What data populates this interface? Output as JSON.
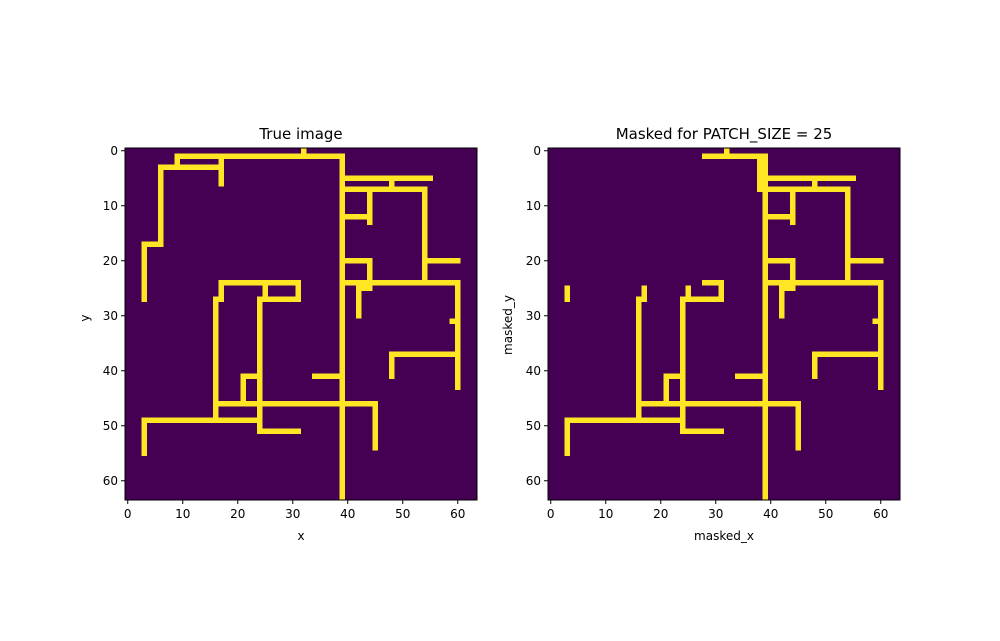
{
  "colors": {
    "background": "#440154",
    "foreground": "#fde725",
    "axis": "#000000"
  },
  "chart_data": [
    {
      "type": "heatmap",
      "title": "True image",
      "xlabel": "x",
      "ylabel": "y",
      "xlim": [
        -0.5,
        63.5
      ],
      "ylim": [
        63.5,
        -0.5
      ],
      "xticks": [
        0,
        10,
        20,
        30,
        40,
        50,
        60
      ],
      "yticks": [
        0,
        10,
        20,
        30,
        40,
        50,
        60
      ],
      "image_size": [
        64,
        64
      ],
      "colormap": "viridis",
      "segments": [
        [
          [
            10,
            1
          ],
          [
            39,
            1
          ]
        ],
        [
          [
            9,
            1
          ],
          [
            9,
            3
          ]
        ],
        [
          [
            6,
            3
          ],
          [
            17,
            3
          ]
        ],
        [
          [
            17,
            1
          ],
          [
            17,
            6
          ]
        ],
        [
          [
            6,
            3
          ],
          [
            6,
            17
          ]
        ],
        [
          [
            3,
            17
          ],
          [
            6,
            17
          ]
        ],
        [
          [
            3,
            17
          ],
          [
            3,
            27
          ]
        ],
        [
          [
            32,
            0
          ],
          [
            32,
            1
          ]
        ],
        [
          [
            39,
            1
          ],
          [
            39,
            7
          ]
        ],
        [
          [
            39,
            1
          ],
          [
            39,
            63
          ]
        ],
        [
          [
            39,
            5
          ],
          [
            55,
            5
          ]
        ],
        [
          [
            48,
            5
          ],
          [
            48,
            7
          ]
        ],
        [
          [
            39,
            7
          ],
          [
            54,
            7
          ]
        ],
        [
          [
            54,
            7
          ],
          [
            54,
            24
          ]
        ],
        [
          [
            44,
            7
          ],
          [
            44,
            13
          ]
        ],
        [
          [
            39,
            12
          ],
          [
            44,
            12
          ]
        ],
        [
          [
            39,
            20
          ],
          [
            44,
            20
          ]
        ],
        [
          [
            44,
            20
          ],
          [
            44,
            24
          ]
        ],
        [
          [
            54,
            20
          ],
          [
            60,
            20
          ]
        ],
        [
          [
            39,
            24
          ],
          [
            60,
            24
          ]
        ],
        [
          [
            42,
            24
          ],
          [
            42,
            30
          ]
        ],
        [
          [
            42,
            25
          ],
          [
            44,
            25
          ]
        ],
        [
          [
            60,
            24
          ],
          [
            60,
            43
          ]
        ],
        [
          [
            59,
            31
          ],
          [
            60,
            31
          ]
        ],
        [
          [
            48,
            37
          ],
          [
            60,
            37
          ]
        ],
        [
          [
            48,
            37
          ],
          [
            48,
            41
          ]
        ],
        [
          [
            34,
            41
          ],
          [
            39,
            41
          ]
        ],
        [
          [
            17,
            24
          ],
          [
            31,
            24
          ]
        ],
        [
          [
            31,
            24
          ],
          [
            31,
            27
          ]
        ],
        [
          [
            24,
            27
          ],
          [
            31,
            27
          ]
        ],
        [
          [
            25,
            24
          ],
          [
            25,
            27
          ]
        ],
        [
          [
            17,
            24
          ],
          [
            17,
            27
          ]
        ],
        [
          [
            16,
            27
          ],
          [
            17,
            27
          ]
        ],
        [
          [
            16,
            27
          ],
          [
            16,
            48
          ]
        ],
        [
          [
            24,
            27
          ],
          [
            24,
            51
          ]
        ],
        [
          [
            21,
            41
          ],
          [
            24,
            41
          ]
        ],
        [
          [
            21,
            41
          ],
          [
            21,
            46
          ]
        ],
        [
          [
            16,
            46
          ],
          [
            45,
            46
          ]
        ],
        [
          [
            45,
            46
          ],
          [
            45,
            54
          ]
        ],
        [
          [
            3,
            49
          ],
          [
            24,
            49
          ]
        ],
        [
          [
            3,
            49
          ],
          [
            3,
            55
          ]
        ],
        [
          [
            24,
            51
          ],
          [
            31,
            51
          ]
        ]
      ]
    },
    {
      "type": "heatmap",
      "title": "Masked for PATCH_SIZE = 25",
      "xlabel": "masked_x",
      "ylabel": "masked_y",
      "xlim": [
        -0.5,
        63.5
      ],
      "ylim": [
        63.5,
        -0.5
      ],
      "xticks": [
        0,
        10,
        20,
        30,
        40,
        50,
        60
      ],
      "yticks": [
        0,
        10,
        20,
        30,
        40,
        50,
        60
      ],
      "image_size": [
        64,
        64
      ],
      "colormap": "viridis",
      "segments": [
        [
          [
            28,
            1
          ],
          [
            39,
            1
          ]
        ],
        [
          [
            32,
            0
          ],
          [
            32,
            1
          ]
        ],
        [
          [
            38,
            1
          ],
          [
            38,
            7
          ]
        ],
        [
          [
            39,
            1
          ],
          [
            39,
            63
          ]
        ],
        [
          [
            39,
            5
          ],
          [
            55,
            5
          ]
        ],
        [
          [
            48,
            5
          ],
          [
            48,
            7
          ]
        ],
        [
          [
            39,
            7
          ],
          [
            54,
            7
          ]
        ],
        [
          [
            54,
            7
          ],
          [
            54,
            24
          ]
        ],
        [
          [
            44,
            7
          ],
          [
            44,
            13
          ]
        ],
        [
          [
            39,
            12
          ],
          [
            44,
            12
          ]
        ],
        [
          [
            39,
            20
          ],
          [
            44,
            20
          ]
        ],
        [
          [
            44,
            20
          ],
          [
            44,
            24
          ]
        ],
        [
          [
            54,
            20
          ],
          [
            60,
            20
          ]
        ],
        [
          [
            39,
            24
          ],
          [
            60,
            24
          ]
        ],
        [
          [
            42,
            24
          ],
          [
            42,
            30
          ]
        ],
        [
          [
            42,
            25
          ],
          [
            44,
            25
          ]
        ],
        [
          [
            60,
            24
          ],
          [
            60,
            43
          ]
        ],
        [
          [
            59,
            31
          ],
          [
            60,
            31
          ]
        ],
        [
          [
            48,
            37
          ],
          [
            60,
            37
          ]
        ],
        [
          [
            48,
            37
          ],
          [
            48,
            41
          ]
        ],
        [
          [
            34,
            41
          ],
          [
            39,
            41
          ]
        ],
        [
          [
            3,
            25
          ],
          [
            3,
            27
          ]
        ],
        [
          [
            28,
            24
          ],
          [
            31,
            24
          ]
        ],
        [
          [
            31,
            24
          ],
          [
            31,
            27
          ]
        ],
        [
          [
            24,
            27
          ],
          [
            31,
            27
          ]
        ],
        [
          [
            25,
            25
          ],
          [
            25,
            27
          ]
        ],
        [
          [
            17,
            25
          ],
          [
            17,
            27
          ]
        ],
        [
          [
            16,
            27
          ],
          [
            17,
            27
          ]
        ],
        [
          [
            16,
            27
          ],
          [
            16,
            48
          ]
        ],
        [
          [
            24,
            27
          ],
          [
            24,
            51
          ]
        ],
        [
          [
            21,
            41
          ],
          [
            24,
            41
          ]
        ],
        [
          [
            21,
            41
          ],
          [
            21,
            46
          ]
        ],
        [
          [
            16,
            46
          ],
          [
            45,
            46
          ]
        ],
        [
          [
            45,
            46
          ],
          [
            45,
            54
          ]
        ],
        [
          [
            3,
            49
          ],
          [
            24,
            49
          ]
        ],
        [
          [
            3,
            49
          ],
          [
            3,
            55
          ]
        ],
        [
          [
            24,
            51
          ],
          [
            31,
            51
          ]
        ]
      ]
    }
  ]
}
